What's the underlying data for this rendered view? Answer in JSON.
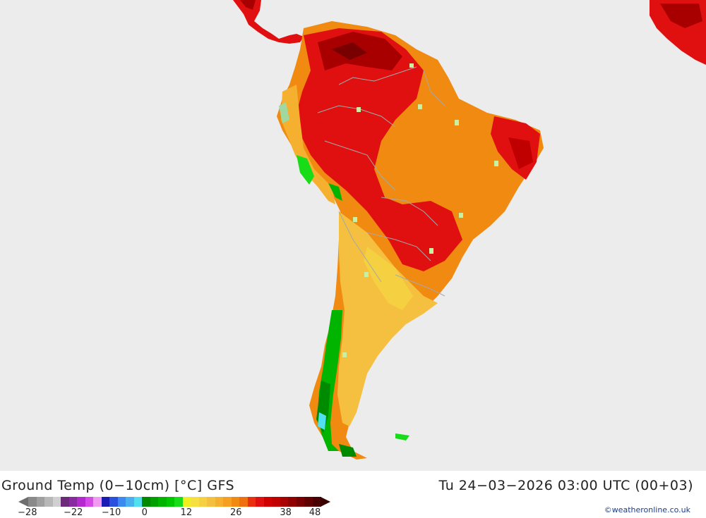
{
  "title": "Ground Temp (0−10cm) [°C] GFS",
  "timestamp": "Tu 24−03−2026 03:00 UTC (00+03)",
  "credit": "©weatheronline.co.uk",
  "legend": {
    "colors": [
      "#8a8a8a",
      "#a0a0a0",
      "#b8b8b8",
      "#d0d0d0",
      "#6b2a7a",
      "#8a2aa0",
      "#b52ad0",
      "#d84ae8",
      "#f09af0",
      "#1a1ab4",
      "#2a50e0",
      "#3a8af0",
      "#4ab0f0",
      "#50e0f0",
      "#008a00",
      "#00a000",
      "#00b400",
      "#00c800",
      "#18dc18",
      "#f0f020",
      "#f5e040",
      "#f5d040",
      "#f5c040",
      "#f5b030",
      "#f5a020",
      "#f08a10",
      "#f07010",
      "#e83010",
      "#e01010",
      "#d00000",
      "#c00000",
      "#a80000",
      "#900000",
      "#780000",
      "#600000",
      "#480000"
    ],
    "ticks": [
      {
        "label": "−28",
        "pos": -0.012
      },
      {
        "label": "−22",
        "pos": 0.145
      },
      {
        "label": "−10",
        "pos": 0.275
      },
      {
        "label": "0",
        "pos": 0.412
      },
      {
        "label": "12",
        "pos": 0.545
      },
      {
        "label": "26",
        "pos": 0.715
      },
      {
        "label": "38",
        "pos": 0.885
      },
      {
        "label": "48",
        "pos": 0.985
      }
    ]
  },
  "colors": {
    "ocean": "#ececec",
    "land_border": "#a8a8a8",
    "coast": "#a0d8a0",
    "cold_green_dark": "#008a00",
    "cold_green": "#18dc18",
    "yellow": "#f5d040",
    "orange_light": "#f5b030",
    "orange": "#f08a10",
    "red": "#e01010",
    "dark_red": "#a80000"
  }
}
